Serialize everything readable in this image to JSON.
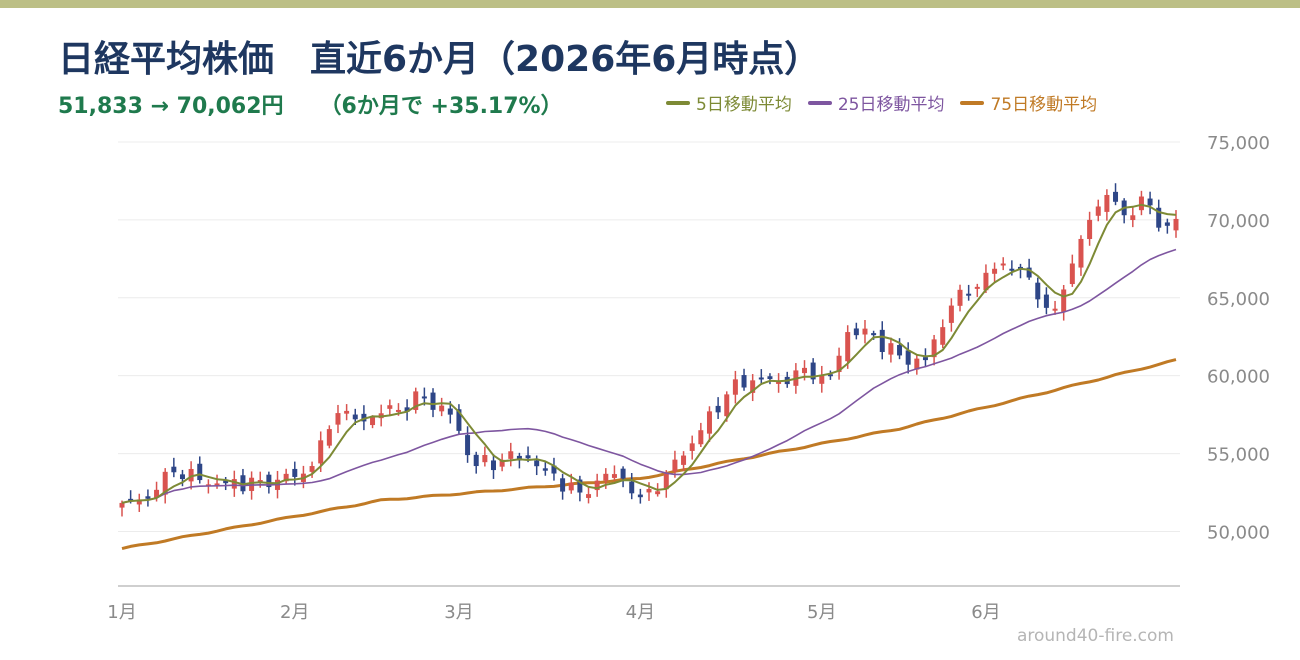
{
  "title": "日経平均株価　直近6か月（2026年6月時点）",
  "subtitle": {
    "range": "51,833 → 70,062円",
    "change": "（6か月で +35.17%）"
  },
  "credit": "around40-fire.com",
  "colors": {
    "up": "#d9534f",
    "down": "#2e4687",
    "ma5": "#7d8a35",
    "ma25": "#7e56a0",
    "ma75": "#c07a25",
    "title": "#1e3760",
    "subtitle": "#1f7a4d",
    "grid": "#ececec",
    "axis": "#cfcfcf"
  },
  "chart_data": {
    "type": "candlestick",
    "ylim": [
      46500,
      75000
    ],
    "yticks": [
      50000,
      55000,
      60000,
      65000,
      70000,
      75000
    ],
    "ytick_labels": [
      "50,000",
      "55,000",
      "60,000",
      "65,000",
      "70,000",
      "75,000"
    ],
    "grid": true,
    "legend_position": "top-right",
    "x_months": [
      {
        "label": "1月",
        "index": 0
      },
      {
        "label": "2月",
        "index": 20
      },
      {
        "label": "3月",
        "index": 39
      },
      {
        "label": "4月",
        "index": 60
      },
      {
        "label": "5月",
        "index": 81
      },
      {
        "label": "6月",
        "index": 100
      }
    ],
    "close_anchors": [
      [
        0,
        51833
      ],
      [
        3,
        52100
      ],
      [
        6,
        53800
      ],
      [
        9,
        53300
      ],
      [
        12,
        53100
      ],
      [
        16,
        53300
      ],
      [
        20,
        53500
      ],
      [
        22,
        54200
      ],
      [
        25,
        57600
      ],
      [
        27,
        57200
      ],
      [
        32,
        57800
      ],
      [
        35,
        58600
      ],
      [
        38,
        57500
      ],
      [
        41,
        54200
      ],
      [
        44,
        54600
      ],
      [
        47,
        54700
      ],
      [
        49,
        53900
      ],
      [
        53,
        52500
      ],
      [
        56,
        53700
      ],
      [
        58,
        53400
      ],
      [
        60,
        52200
      ],
      [
        63,
        53700
      ],
      [
        67,
        56500
      ],
      [
        70,
        58800
      ],
      [
        73,
        59700
      ],
      [
        76,
        59600
      ],
      [
        79,
        60500
      ],
      [
        82,
        60000
      ],
      [
        84,
        62800
      ],
      [
        87,
        62600
      ],
      [
        90,
        61300
      ],
      [
        93,
        61000
      ],
      [
        96,
        64500
      ],
      [
        99,
        65700
      ],
      [
        102,
        67200
      ],
      [
        104,
        66800
      ],
      [
        106,
        64900
      ],
      [
        108,
        64300
      ],
      [
        110,
        67200
      ],
      [
        112,
        70000
      ],
      [
        114,
        71600
      ],
      [
        116,
        70300
      ],
      [
        118,
        71500
      ],
      [
        120,
        69500
      ],
      [
        122,
        70062
      ]
    ],
    "series": [
      {
        "name": "5日移動平均"
      },
      {
        "name": "25日移動平均"
      },
      {
        "name": "75日移動平均"
      }
    ],
    "ma75_anchors": [
      [
        0,
        48900
      ],
      [
        30,
        52000
      ],
      [
        60,
        53400
      ],
      [
        90,
        56600
      ],
      [
        122,
        61000
      ]
    ]
  }
}
